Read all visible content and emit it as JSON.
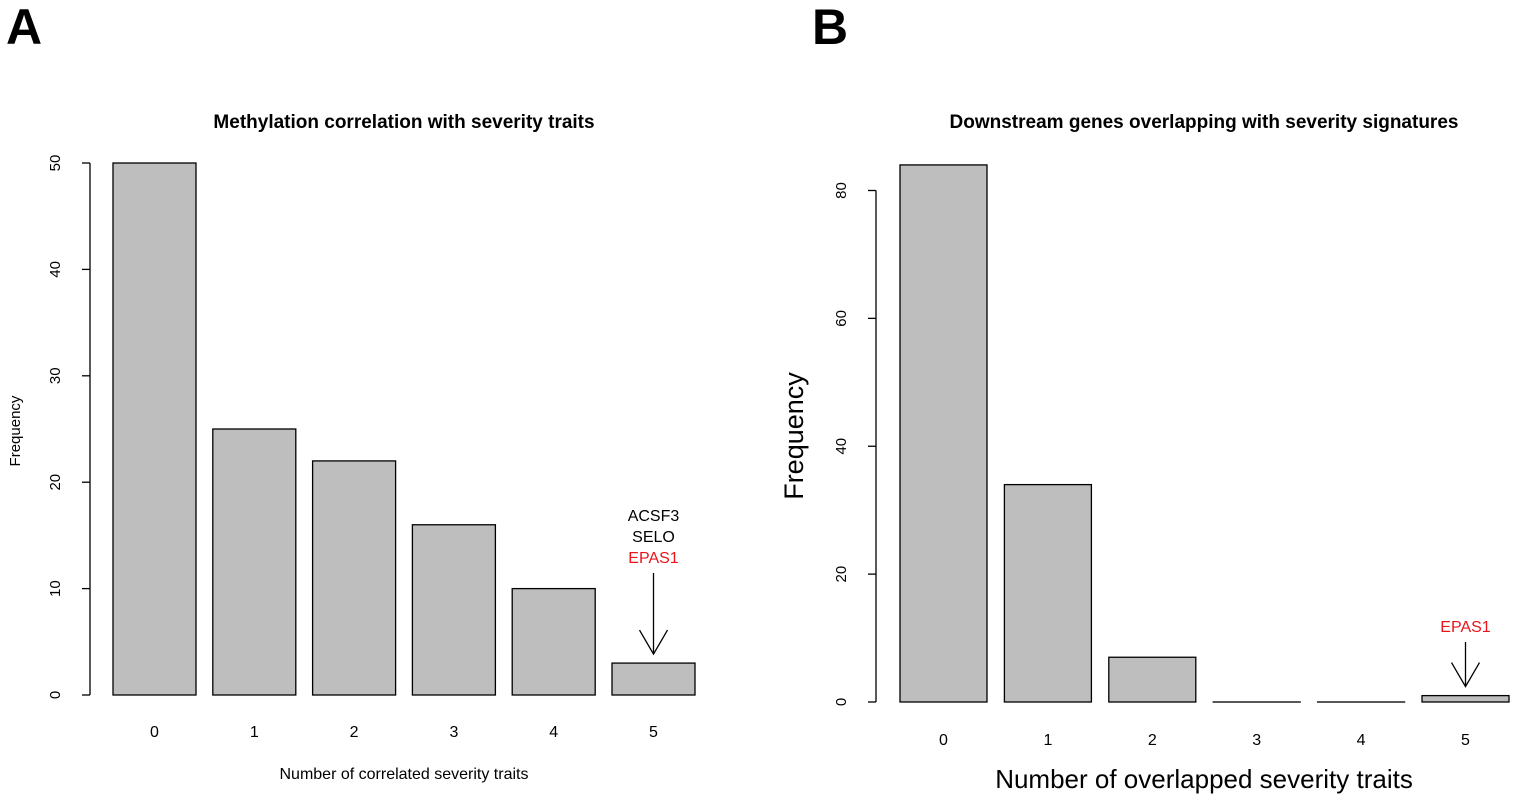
{
  "panels": [
    {
      "letter": "A",
      "title": "Methylation correlation with severity traits",
      "xlabel": "Number of correlated severity traits",
      "ylabel": "Frequency",
      "annotation": {
        "category": "5",
        "lines": [
          "ACSF3",
          "SELO"
        ],
        "highlight": "EPAS1"
      }
    },
    {
      "letter": "B",
      "title": "Downstream genes overlapping with severity signatures",
      "xlabel": "Number of overlapped severity traits",
      "ylabel": "Frequency",
      "annotation": {
        "category": "5",
        "lines": [],
        "highlight": "EPAS1"
      }
    }
  ],
  "colors": {
    "bar_fill": "#bebebe",
    "bar_stroke": "#000000",
    "highlight": "#e8161b",
    "text": "#000000"
  },
  "chart_data": [
    {
      "type": "bar",
      "title": "Methylation correlation with severity traits",
      "xlabel": "Number of correlated severity traits",
      "ylabel": "Frequency",
      "categories": [
        "0",
        "1",
        "2",
        "3",
        "4",
        "5"
      ],
      "values": [
        50,
        25,
        22,
        16,
        10,
        3
      ],
      "ylim": [
        0,
        50
      ],
      "yticks": [
        0,
        10,
        20,
        30,
        40,
        50
      ],
      "grid": false
    },
    {
      "type": "bar",
      "title": "Downstream genes overlapping with severity signatures",
      "xlabel": "Number of overlapped severity traits",
      "ylabel": "Frequency",
      "categories": [
        "0",
        "1",
        "2",
        "3",
        "4",
        "5"
      ],
      "values": [
        84,
        34,
        7,
        0,
        0,
        1
      ],
      "ylim": [
        0,
        80
      ],
      "yticks": [
        0,
        20,
        40,
        60,
        80
      ],
      "grid": false
    }
  ]
}
